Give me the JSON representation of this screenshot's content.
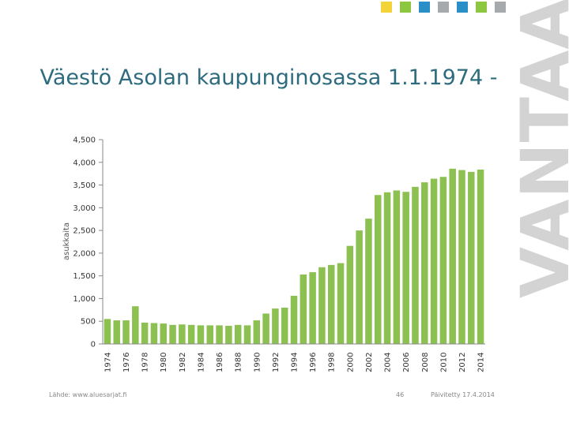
{
  "slide": {
    "title": "Väestö Asolan kaupunginosassa 1.1.1974 -",
    "logo_text": "VANTAA",
    "source": "Lähde: www.aluesarjat.fi",
    "page_number": "46",
    "updated": "Päivitetty 17.4.2014"
  },
  "colors": {
    "bar": "#8cc152",
    "title": "#2d6b7f",
    "logo": "#d3d3d3",
    "accent_squares": [
      "#f2d33a",
      "#8dc63f",
      "#2b8fc7",
      "#a7aaad",
      "#2b8fc7",
      "#8dc63f",
      "#a7aaad"
    ]
  },
  "chart_data": {
    "type": "bar",
    "title": "",
    "xlabel": "",
    "ylabel": "asukkaita",
    "ylim": [
      0,
      4500
    ],
    "yticks": [
      0,
      500,
      1000,
      1500,
      2000,
      2500,
      3000,
      3500,
      4000,
      4500
    ],
    "ytick_labels": [
      "0",
      "500",
      "1,000",
      "1,500",
      "2,000",
      "2,500",
      "3,000",
      "3,500",
      "4,000",
      "4,500"
    ],
    "x_tick_labels": [
      "1974",
      "1976",
      "1978",
      "1980",
      "1982",
      "1984",
      "1986",
      "1988",
      "1990",
      "1992",
      "1994",
      "1996",
      "1998",
      "2000",
      "2002",
      "2004",
      "2006",
      "2008",
      "2010",
      "2012",
      "2014"
    ],
    "categories": [
      1974,
      1975,
      1976,
      1977,
      1978,
      1979,
      1980,
      1981,
      1982,
      1983,
      1984,
      1985,
      1986,
      1987,
      1988,
      1989,
      1990,
      1991,
      1992,
      1993,
      1994,
      1995,
      1996,
      1997,
      1998,
      1999,
      2000,
      2001,
      2002,
      2003,
      2004,
      2005,
      2006,
      2007,
      2008,
      2009,
      2010,
      2011,
      2012,
      2013,
      2014
    ],
    "values": [
      550,
      520,
      520,
      830,
      470,
      460,
      450,
      420,
      430,
      420,
      410,
      410,
      410,
      400,
      420,
      410,
      520,
      670,
      780,
      800,
      1060,
      1530,
      1580,
      1690,
      1740,
      1780,
      2160,
      2500,
      2760,
      3280,
      3340,
      3380,
      3350,
      3460,
      3560,
      3640,
      3680,
      3860,
      3830,
      3790,
      3840
    ],
    "grid": false,
    "legend": "none"
  }
}
